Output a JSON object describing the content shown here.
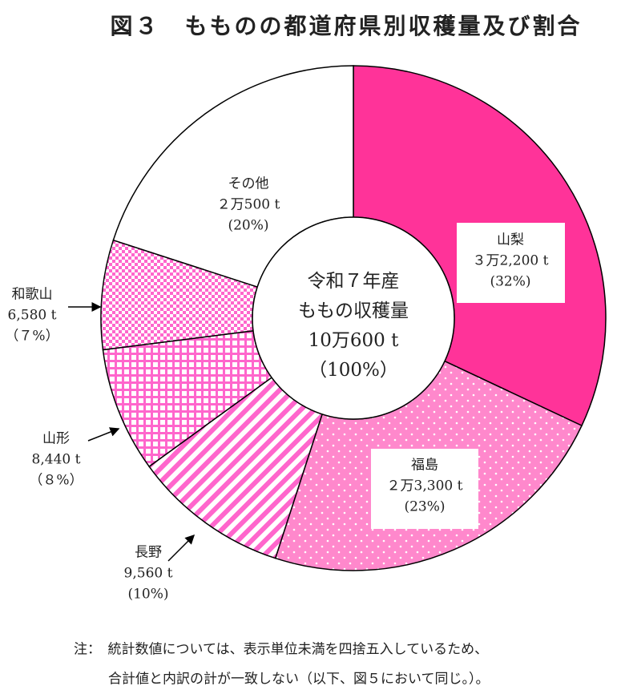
{
  "chart_data": {
    "type": "donut",
    "title": "図３　もものの都道府県別収穫量及び割合",
    "categories": [
      "山梨",
      "福島",
      "長野",
      "山形",
      "和歌山",
      "その他"
    ],
    "values": [
      32,
      23,
      10,
      8,
      7,
      20
    ],
    "value_labels": [
      "(32%)",
      "(23%)",
      "(10%)",
      "（８%）",
      "（７%）",
      "(20%)"
    ],
    "amount_labels": [
      "３万2,200 t",
      "２万3,300 t",
      "9,560 t",
      "8,440 t",
      "6,580 t",
      "２万500 t"
    ],
    "colors": [
      "#ff3399",
      "#ff88cc",
      "#ff66cc",
      "#ff66cc",
      "#ff66cc",
      "#ffffff"
    ],
    "patterns": [
      "solid",
      "dots",
      "stripes",
      "grid",
      "checker",
      "solid"
    ],
    "center_lines": [
      "令和７年産",
      "ももの収穫量",
      "10万600 t",
      "（100%）"
    ],
    "notes": [
      "注：　統計数値については、表示単位未満を四捨五入しているため、",
      "合計値と内訳の計が一致しない（以下、図５において同じ。）。"
    ]
  }
}
